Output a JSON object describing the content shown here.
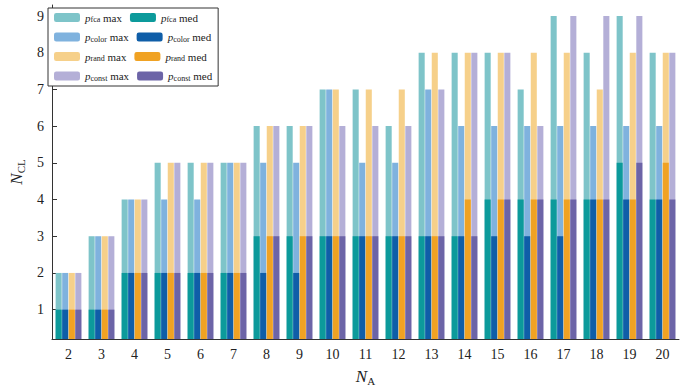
{
  "chart_data": {
    "type": "bar",
    "x_label": "NA",
    "y_label": "NCL",
    "categories": [
      "2",
      "3",
      "4",
      "5",
      "6",
      "7",
      "8",
      "9",
      "10",
      "11",
      "12",
      "13",
      "14",
      "15",
      "16",
      "17",
      "18",
      "19",
      "20"
    ],
    "ylim": [
      0.2,
      9.3
    ],
    "yticks": [
      1,
      2,
      3,
      4,
      5,
      6,
      7,
      8,
      9
    ],
    "grid": false,
    "legend": "upper left",
    "series": [
      {
        "name": "pfca max",
        "color": "#7ec4c9",
        "values": [
          2,
          3,
          4,
          5,
          5,
          5,
          6,
          6,
          7,
          7,
          6,
          8,
          8,
          8,
          7,
          9,
          8,
          9,
          8
        ]
      },
      {
        "name": "pcolor max",
        "color": "#7fb2de",
        "values": [
          2,
          3,
          4,
          4,
          4,
          5,
          5,
          5,
          7,
          5,
          5,
          7,
          6,
          6,
          6,
          6,
          6,
          6,
          6
        ]
      },
      {
        "name": "prand max",
        "color": "#f6d08a",
        "values": [
          2,
          3,
          4,
          5,
          5,
          5,
          6,
          6,
          7,
          7,
          7,
          8,
          8,
          8,
          8,
          8,
          7,
          8,
          8
        ]
      },
      {
        "name": "pconst max",
        "color": "#b4afd7",
        "values": [
          2,
          3,
          4,
          5,
          5,
          5,
          6,
          6,
          6,
          6,
          6,
          7,
          8,
          8,
          6,
          9,
          9,
          9,
          8
        ]
      },
      {
        "name": "pfca med",
        "color": "#0c9a9b",
        "values": [
          1,
          1,
          2,
          2,
          2,
          2,
          3,
          3,
          3,
          3,
          3,
          3,
          3,
          4,
          4,
          4,
          4,
          5,
          4
        ]
      },
      {
        "name": "pcolor med",
        "color": "#0f5ea8",
        "values": [
          1,
          1,
          2,
          2,
          2,
          2,
          2,
          2,
          3,
          3,
          3,
          3,
          3,
          3,
          3,
          3,
          4,
          4,
          4
        ]
      },
      {
        "name": "prand med",
        "color": "#f0a223",
        "values": [
          1,
          1,
          2,
          2,
          2,
          2,
          3,
          3,
          3,
          3,
          3,
          3,
          4,
          4,
          4,
          4,
          4,
          4,
          5
        ]
      },
      {
        "name": "pconst med",
        "color": "#6c64a7",
        "values": [
          1,
          1,
          2,
          2,
          2,
          2,
          3,
          3,
          3,
          3,
          3,
          3,
          3,
          4,
          4,
          4,
          4,
          5,
          4
        ]
      }
    ]
  }
}
